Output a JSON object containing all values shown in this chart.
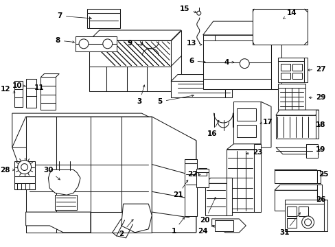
{
  "background_color": "#ffffff",
  "line_color": "#1a1a1a",
  "label_color": "#000000",
  "fig_width": 4.89,
  "fig_height": 3.6,
  "dpi": 100,
  "label_fontsize": 7.5,
  "arrow_lw": 0.55,
  "draw_lw": 0.75
}
